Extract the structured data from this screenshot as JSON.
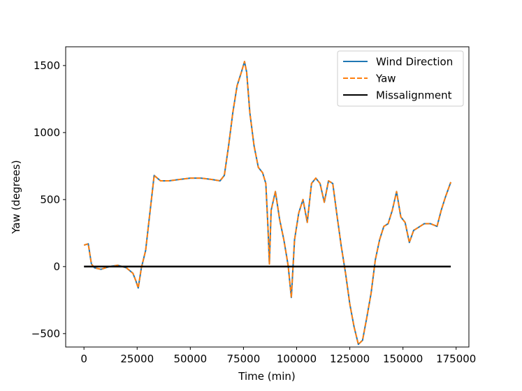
{
  "chart_data": {
    "type": "line",
    "title": "",
    "xlabel": "Time (min)",
    "ylabel": "Yaw (degrees)",
    "xlim": [
      -8600,
      181000
    ],
    "ylim": [
      -600,
      1640
    ],
    "xticks": [
      0,
      25000,
      50000,
      75000,
      100000,
      125000,
      150000,
      175000
    ],
    "xtick_labels": [
      "0",
      "25000",
      "50000",
      "75000",
      "100000",
      "125000",
      "150000",
      "175000"
    ],
    "yticks": [
      -500,
      0,
      500,
      1000,
      1500
    ],
    "ytick_labels": [
      "−500",
      "0",
      "500",
      "1000",
      "1500"
    ],
    "grid": false,
    "legend_position": "top-right",
    "series": [
      {
        "name": "Wind Direction",
        "color": "#1f77b4",
        "style": "solid",
        "x": [
          0,
          2000,
          3500,
          5000,
          8000,
          12000,
          16000,
          20000,
          23000,
          24500,
          25500,
          27000,
          29000,
          31000,
          33000,
          36000,
          40000,
          45000,
          50000,
          55000,
          60000,
          64000,
          66000,
          68000,
          70000,
          72000,
          74000,
          75500,
          76500,
          78000,
          80000,
          82000,
          84000,
          85500,
          86500,
          87200,
          88000,
          90000,
          92000,
          94000,
          96000,
          97500,
          99000,
          101000,
          103000,
          105000,
          107000,
          109000,
          111000,
          113000,
          115000,
          117000,
          119000,
          121000,
          123000,
          125000,
          127000,
          129000,
          131000,
          133000,
          135000,
          137000,
          139000,
          141000,
          143000,
          145000,
          147000,
          149000,
          151000,
          153000,
          155000,
          157000,
          160000,
          163000,
          166000,
          168000,
          170000,
          172500
        ],
        "values": [
          160,
          170,
          20,
          -10,
          -20,
          0,
          10,
          -10,
          -50,
          -110,
          -160,
          -10,
          120,
          400,
          680,
          640,
          640,
          650,
          660,
          660,
          650,
          640,
          680,
          900,
          1150,
          1350,
          1450,
          1530,
          1450,
          1150,
          900,
          740,
          700,
          620,
          300,
          20,
          420,
          560,
          350,
          200,
          10,
          -230,
          200,
          400,
          500,
          330,
          620,
          660,
          620,
          480,
          640,
          620,
          380,
          150,
          -50,
          -280,
          -450,
          -580,
          -550,
          -380,
          -200,
          50,
          200,
          300,
          320,
          420,
          560,
          370,
          330,
          180,
          270,
          290,
          320,
          320,
          300,
          420,
          520,
          630
        ]
      },
      {
        "name": "Yaw",
        "color": "#ff7f0e",
        "style": "dashed",
        "x": [
          0,
          2000,
          3500,
          5000,
          8000,
          12000,
          16000,
          20000,
          23000,
          24500,
          25500,
          27000,
          29000,
          31000,
          33000,
          36000,
          40000,
          45000,
          50000,
          55000,
          60000,
          64000,
          66000,
          68000,
          70000,
          72000,
          74000,
          75500,
          76500,
          78000,
          80000,
          82000,
          84000,
          85500,
          86500,
          87200,
          88000,
          90000,
          92000,
          94000,
          96000,
          97500,
          99000,
          101000,
          103000,
          105000,
          107000,
          109000,
          111000,
          113000,
          115000,
          117000,
          119000,
          121000,
          123000,
          125000,
          127000,
          129000,
          131000,
          133000,
          135000,
          137000,
          139000,
          141000,
          143000,
          145000,
          147000,
          149000,
          151000,
          153000,
          155000,
          157000,
          160000,
          163000,
          166000,
          168000,
          170000,
          172500
        ],
        "values": [
          160,
          170,
          20,
          -10,
          -20,
          0,
          10,
          -10,
          -50,
          -110,
          -160,
          -10,
          120,
          400,
          680,
          640,
          640,
          650,
          660,
          660,
          650,
          640,
          680,
          900,
          1150,
          1350,
          1450,
          1530,
          1450,
          1150,
          900,
          740,
          700,
          620,
          300,
          20,
          420,
          560,
          350,
          200,
          10,
          -230,
          200,
          400,
          500,
          330,
          620,
          660,
          620,
          480,
          640,
          620,
          380,
          150,
          -50,
          -280,
          -450,
          -580,
          -550,
          -380,
          -200,
          50,
          200,
          300,
          320,
          420,
          560,
          370,
          330,
          180,
          270,
          290,
          320,
          320,
          300,
          420,
          520,
          630
        ]
      },
      {
        "name": "Missalignment",
        "color": "#000000",
        "style": "solid",
        "x": [
          0,
          172500
        ],
        "values": [
          0,
          0
        ]
      }
    ]
  }
}
